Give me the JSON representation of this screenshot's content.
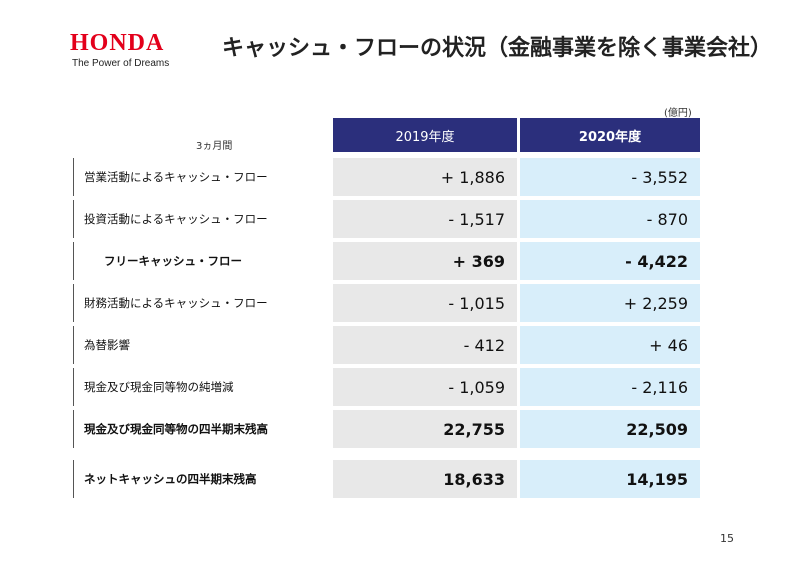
{
  "header": {
    "logo": "HONDA",
    "tagline": "The Power of Dreams",
    "title": "キャッシュ・フローの状況（金融事業を除く事業会社）"
  },
  "table": {
    "unit": "(億円)",
    "period": "3ヵ月間",
    "columns": [
      "2019年度",
      "2020年度"
    ],
    "rows": [
      {
        "label": "営業活動によるキャッシュ・フロー",
        "cells": [
          "+ 1,886",
          "- 3,552"
        ],
        "bold": false,
        "indent": false
      },
      {
        "label": "投資活動によるキャッシュ・フロー",
        "cells": [
          "- 1,517",
          "- 870"
        ],
        "bold": false,
        "indent": false
      },
      {
        "label": "フリーキャッシュ・フロー",
        "cells": [
          "+ 369",
          "- 4,422"
        ],
        "bold": true,
        "indent": true
      },
      {
        "label": "財務活動によるキャッシュ・フロー",
        "cells": [
          "- 1,015",
          "+ 2,259"
        ],
        "bold": false,
        "indent": false
      },
      {
        "label": "為替影響",
        "cells": [
          "- 412",
          "+ 46"
        ],
        "bold": false,
        "indent": false
      },
      {
        "label": "現金及び現金同等物の純増減",
        "cells": [
          "- 1,059",
          "- 2,116"
        ],
        "bold": false,
        "indent": false
      },
      {
        "label": "現金及び現金同等物の四半期末残高",
        "cells": [
          "22,755",
          "22,509"
        ],
        "bold": true,
        "indent": false
      },
      {
        "label": "ネットキャッシュの四半期末残高",
        "cells": [
          "18,633",
          "14,195"
        ],
        "bold": true,
        "indent": false
      }
    ]
  },
  "page_number": "15"
}
